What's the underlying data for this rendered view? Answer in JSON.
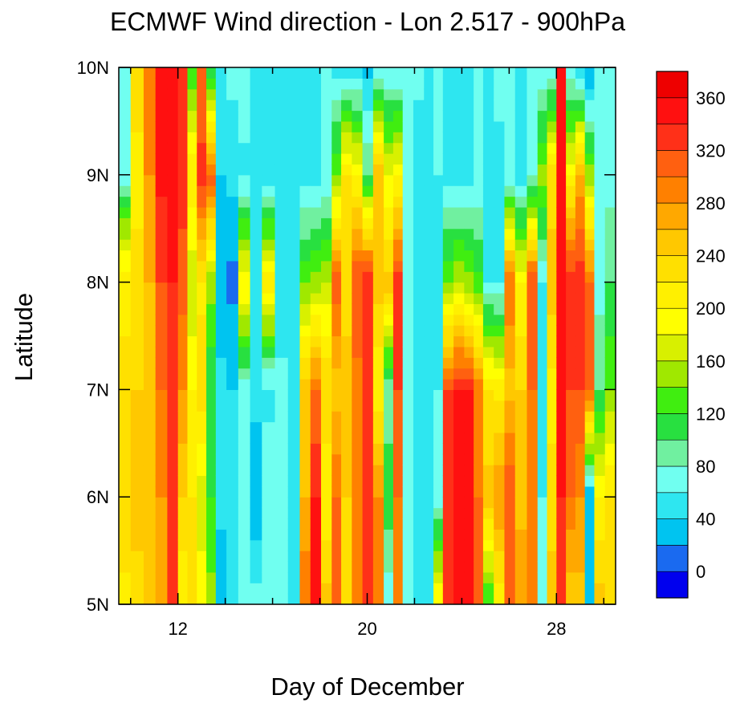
{
  "chart_data": {
    "type": "heatmap",
    "title": "ECMWF Wind direction - Lon 2.517 - 900hPa",
    "xlabel": "Day of December",
    "ylabel": "Latitude",
    "xlim": [
      9.5,
      30.5
    ],
    "ylim": [
      5,
      10
    ],
    "x_ticks": [
      {
        "value": 12,
        "label": "12"
      },
      {
        "value": 20,
        "label": "20"
      },
      {
        "value": 28,
        "label": "28"
      }
    ],
    "x_minor_ticks": [
      10,
      14,
      16,
      18,
      22,
      24,
      26,
      30
    ],
    "y_ticks": [
      {
        "value": 5,
        "label": "5N"
      },
      {
        "value": 6,
        "label": "6N"
      },
      {
        "value": 7,
        "label": "7N"
      },
      {
        "value": 8,
        "label": "8N"
      },
      {
        "value": 9,
        "label": "9N"
      },
      {
        "value": 10,
        "label": "10N"
      }
    ],
    "colorbar": {
      "levels": [
        0,
        20,
        40,
        60,
        80,
        100,
        120,
        140,
        160,
        180,
        200,
        220,
        240,
        260,
        280,
        300,
        320,
        340,
        360
      ],
      "colors": [
        "#0000ee",
        "#1a6af0",
        "#00c4f0",
        "#2ee6f0",
        "#70fff0",
        "#70f0a0",
        "#28e040",
        "#40ee10",
        "#a0e800",
        "#d8f000",
        "#ffff00",
        "#fff000",
        "#ffe000",
        "#ffc800",
        "#ffa800",
        "#ff8000",
        "#ff6010",
        "#ff3018",
        "#ff1010",
        "#ee0000"
      ],
      "tick_labels": [
        {
          "value": 0,
          "label": "0"
        },
        {
          "value": 40,
          "label": "40"
        },
        {
          "value": 80,
          "label": "80"
        },
        {
          "value": 120,
          "label": "120"
        },
        {
          "value": 160,
          "label": "160"
        },
        {
          "value": 200,
          "label": "200"
        },
        {
          "value": 240,
          "label": "240"
        },
        {
          "value": 280,
          "label": "280"
        },
        {
          "value": 320,
          "label": "320"
        },
        {
          "value": 360,
          "label": "360"
        }
      ]
    },
    "columns": [
      {
        "x": 9.7,
        "v": {
          "5": 215,
          "6": 230,
          "7": 225,
          "8": 215,
          "8.6": 140,
          "9": 60,
          "10": 60
        }
      },
      {
        "x": 10.3,
        "v": {
          "5": 230,
          "6": 250,
          "7": 240,
          "8": 230,
          "9": 210,
          "10": 235
        }
      },
      {
        "x": 10.8,
        "v": {
          "5": 245,
          "6": 250,
          "7": 255,
          "8": 260,
          "9": 280,
          "10": 300
        }
      },
      {
        "x": 11.3,
        "v": {
          "5": 265,
          "6": 280,
          "7": 300,
          "8": 320,
          "9": 345,
          "10": 350
        }
      },
      {
        "x": 11.8,
        "v": {
          "5": 320,
          "6": 330,
          "7": 335,
          "8": 340,
          "9": 350,
          "10": 355
        }
      },
      {
        "x": 12.2,
        "v": {
          "5": 200,
          "6": 240,
          "7": 280,
          "8": 310,
          "9": 330,
          "10": 320
        }
      },
      {
        "x": 12.6,
        "v": {
          "5": 225,
          "6": 220,
          "7": 200,
          "8": 160,
          "9": 220,
          "10": 120
        }
      },
      {
        "x": 13.0,
        "v": {
          "5": 190,
          "6": 170,
          "7": 230,
          "8": 215,
          "9": 330,
          "10": 300
        }
      },
      {
        "x": 13.4,
        "v": {
          "5": 150,
          "6": 120,
          "7": 100,
          "8": 150,
          "9": 310,
          "10": 100
        }
      },
      {
        "x": 13.8,
        "v": {
          "5": 20,
          "6": 50,
          "7": 45,
          "8": 25,
          "9": 40,
          "10": 60
        }
      },
      {
        "x": 14.3,
        "v": {
          "5": 60,
          "6": 50,
          "7": 40,
          "8": 15,
          "9": 45,
          "10": 65
        }
      },
      {
        "x": 14.8,
        "v": {
          "5": 60,
          "6": 60,
          "7": 70,
          "8": 200,
          "9": 55,
          "10": 70
        }
      },
      {
        "x": 15.3,
        "v": {
          "5": 70,
          "6": 20,
          "7": 50,
          "8": 40,
          "9": 50,
          "10": 60
        }
      },
      {
        "x": 15.8,
        "v": {
          "5": 60,
          "6": 70,
          "7": 55,
          "8": 210,
          "9": 50,
          "10": 55
        }
      },
      {
        "x": 16.4,
        "v": {
          "5": 65,
          "6": 60,
          "7": 70,
          "8": 40,
          "9": 50,
          "10": 60
        }
      },
      {
        "x": 16.9,
        "v": {
          "5": 60,
          "6": 55,
          "7": 60,
          "8": 50,
          "9": 45,
          "10": 60
        }
      },
      {
        "x": 17.4,
        "v": {
          "5": 300,
          "6": 260,
          "7": 250,
          "8": 140,
          "9": 50,
          "10": 60
        }
      },
      {
        "x": 17.8,
        "v": {
          "5": 340,
          "6": 340,
          "7": 300,
          "8": 150,
          "9": 55,
          "10": 60
        }
      },
      {
        "x": 18.3,
        "v": {
          "5": 250,
          "6": 200,
          "7": 240,
          "8": 160,
          "9": 60,
          "10": 60
        }
      },
      {
        "x": 18.7,
        "v": {
          "5": 300,
          "6": 300,
          "7": 250,
          "8": 310,
          "9": 140,
          "10": 55
        }
      },
      {
        "x": 19.1,
        "v": {
          "5": 230,
          "6": 240,
          "7": 250,
          "8": 230,
          "9": 220,
          "10": 50
        }
      },
      {
        "x": 19.6,
        "v": {
          "5": 280,
          "6": 300,
          "7": 290,
          "8": 320,
          "9": 200,
          "10": 40
        }
      },
      {
        "x": 20.0,
        "v": {
          "5": 320,
          "6": 330,
          "7": 330,
          "8": 340,
          "9": 100,
          "10": 30
        }
      },
      {
        "x": 20.5,
        "v": {
          "5": 300,
          "6": 280,
          "7": 200,
          "8": 250,
          "9": 260,
          "10": 60
        }
      },
      {
        "x": 20.9,
        "v": {
          "5": 60,
          "6": 120,
          "7": 80,
          "8": 250,
          "9": 180,
          "10": 60
        }
      },
      {
        "x": 21.3,
        "v": {
          "5": 290,
          "6": 300,
          "7": 320,
          "8": 330,
          "9": 200,
          "10": 55
        }
      },
      {
        "x": 21.7,
        "v": {
          "5": 60,
          "6": 70,
          "7": 60,
          "8": 60,
          "9": 60,
          "10": 60
        }
      },
      {
        "x": 22.2,
        "v": {
          "5": 60,
          "6": 55,
          "7": 50,
          "8": 40,
          "9": 45,
          "10": 65
        }
      },
      {
        "x": 22.6,
        "v": {
          "5": 40,
          "6": 55,
          "7": 60,
          "8": 55,
          "9": 40,
          "10": 60
        }
      },
      {
        "x": 23.0,
        "v": {
          "5": 200,
          "6": 70,
          "7": 60,
          "8": 50,
          "9": 60,
          "10": 60
        }
      },
      {
        "x": 23.4,
        "v": {
          "5": 330,
          "6": 330,
          "7": 320,
          "8": 140,
          "9": 55,
          "10": 60
        }
      },
      {
        "x": 23.9,
        "v": {
          "5": 345,
          "6": 345,
          "7": 345,
          "8": 160,
          "9": 50,
          "10": 60
        }
      },
      {
        "x": 24.3,
        "v": {
          "5": 340,
          "6": 340,
          "7": 340,
          "8": 150,
          "9": 55,
          "10": 60
        }
      },
      {
        "x": 24.7,
        "v": {
          "5": 320,
          "6": 300,
          "7": 290,
          "8": 130,
          "9": 60,
          "10": 60
        }
      },
      {
        "x": 25.1,
        "v": {
          "5": 120,
          "6": 250,
          "7": 220,
          "8": 60,
          "9": 50,
          "10": 60
        }
      },
      {
        "x": 25.6,
        "v": {
          "5": 200,
          "6": 280,
          "7": 210,
          "8": 60,
          "9": 55,
          "10": 65
        }
      },
      {
        "x": 26.0,
        "v": {
          "5": 310,
          "6": 320,
          "7": 250,
          "8": 300,
          "9": 60,
          "10": 60
        }
      },
      {
        "x": 26.5,
        "v": {
          "5": 280,
          "6": 250,
          "7": 240,
          "8": 200,
          "9": 50,
          "10": 60
        }
      },
      {
        "x": 27.0,
        "v": {
          "5": 300,
          "6": 290,
          "7": 300,
          "8": 320,
          "9": 70,
          "10": 60
        }
      },
      {
        "x": 27.4,
        "v": {
          "5": 60,
          "6": 60,
          "7": 55,
          "8": 60,
          "9": 150,
          "10": 60
        }
      },
      {
        "x": 27.8,
        "v": {
          "5": 250,
          "6": 230,
          "7": 210,
          "8": 250,
          "9": 230,
          "10": 60
        }
      },
      {
        "x": 28.2,
        "v": {
          "5": 335,
          "6": 340,
          "7": 340,
          "8": 350,
          "9": 350,
          "10": 355
        }
      },
      {
        "x": 28.6,
        "v": {
          "5": 240,
          "6": 300,
          "7": 320,
          "8": 340,
          "9": 200,
          "10": 60
        }
      },
      {
        "x": 29.0,
        "v": {
          "5": 250,
          "6": 280,
          "7": 320,
          "8": 330,
          "9": 270,
          "10": 30
        }
      },
      {
        "x": 29.4,
        "v": {
          "5": 30,
          "6": 20,
          "7": 310,
          "8": 300,
          "9": 150,
          "10": 20
        }
      },
      {
        "x": 29.8,
        "v": {
          "5": 250,
          "6": 200,
          "7": 100,
          "8": 70,
          "9": 60,
          "10": 60
        }
      },
      {
        "x": 30.3,
        "v": {
          "5": 240,
          "6": 220,
          "7": 140,
          "8": 100,
          "9": 70,
          "10": 60
        }
      }
    ]
  }
}
